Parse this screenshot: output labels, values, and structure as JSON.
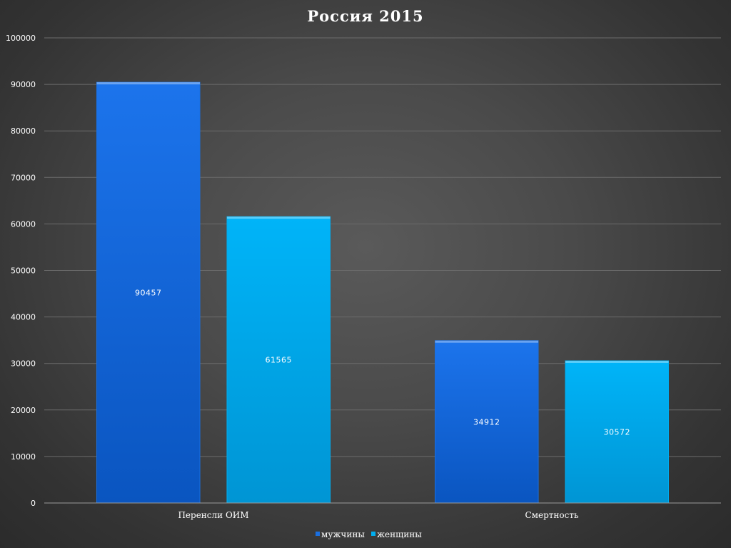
{
  "chart_data": {
    "type": "bar",
    "title": "Россия 2015",
    "categories": [
      "Перенсли ОИМ",
      "Смертность"
    ],
    "series": [
      {
        "name": "мужчины",
        "values": [
          90457,
          34912
        ],
        "color": "#1a6fe0"
      },
      {
        "name": "женщины",
        "values": [
          61565,
          30572
        ],
        "color": "#00aef0"
      }
    ],
    "ylim": [
      0,
      100000
    ],
    "yticks": [
      "0",
      "10000",
      "20000",
      "30000",
      "40000",
      "50000",
      "60000",
      "70000",
      "80000",
      "90000",
      "100000"
    ],
    "grid": true,
    "legend_position": "bottom",
    "xlabel": "",
    "ylabel": ""
  }
}
